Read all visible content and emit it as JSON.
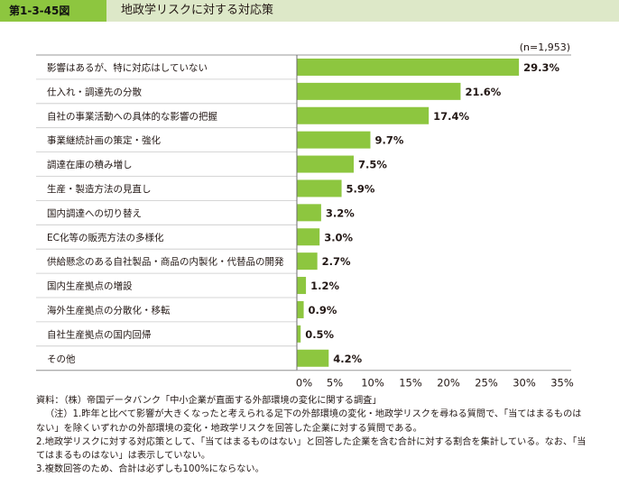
{
  "figure": {
    "number": "第1-3-45図",
    "title": "地政学リスクに対する対応策"
  },
  "chart_data": {
    "type": "bar",
    "orientation": "horizontal",
    "sample_note": "(n=1,953)",
    "categories": [
      "影響はあるが、特に対応はしていない",
      "仕入れ・調達先の分散",
      "自社の事業活動への具体的な影響の把握",
      "事業継続計画の策定・強化",
      "調達在庫の積み増し",
      "生産・製造方法の見直し",
      "国内調達への切り替え",
      "EC化等の販売方法の多様化",
      "供給懸念のある自社製品・商品の内製化・代替品の開発",
      "国内生産拠点の増設",
      "海外生産拠点の分散化・移転",
      "自社生産拠点の国内回帰",
      "その他"
    ],
    "values": [
      29.3,
      21.6,
      17.4,
      9.7,
      7.5,
      5.9,
      3.2,
      3.0,
      2.7,
      1.2,
      0.9,
      0.5,
      4.2
    ],
    "value_labels": [
      "29.3%",
      "21.6%",
      "17.4%",
      "9.7%",
      "7.5%",
      "5.9%",
      "3.2%",
      "3.0%",
      "2.7%",
      "1.2%",
      "0.9%",
      "0.5%",
      "4.2%"
    ],
    "xlim": [
      0,
      35
    ],
    "x_ticks": [
      "0%",
      "5%",
      "10%",
      "15%",
      "20%",
      "25%",
      "30%",
      "35%"
    ],
    "x_unit": "(%)",
    "bar_color": "#8dc63f",
    "grid": false
  },
  "notes": {
    "source": "資料：（株）帝国データバンク「中小企業が直面する外部環境の変化に関する調査」",
    "note1_line1": "（注）1.昨年と比べて影響が大きくなったと考えられる足下の外部環境の変化・地政学リスクを尋ねる質問で、「当てはまるものは",
    "note1_line2": "ない」を除くいずれかの外部環境の変化・地政学リスクを回答した企業に対する質問である。",
    "note2_line1": "2.地政学リスクに対する対応策として、「当てはまるものはない」と回答した企業を含む合計に対する割合を集計している。なお、「当",
    "note2_line2": "てはまるものはない」は表示していない。",
    "note3": "3.複数回答のため、合計は必ずしも100%にならない。"
  }
}
